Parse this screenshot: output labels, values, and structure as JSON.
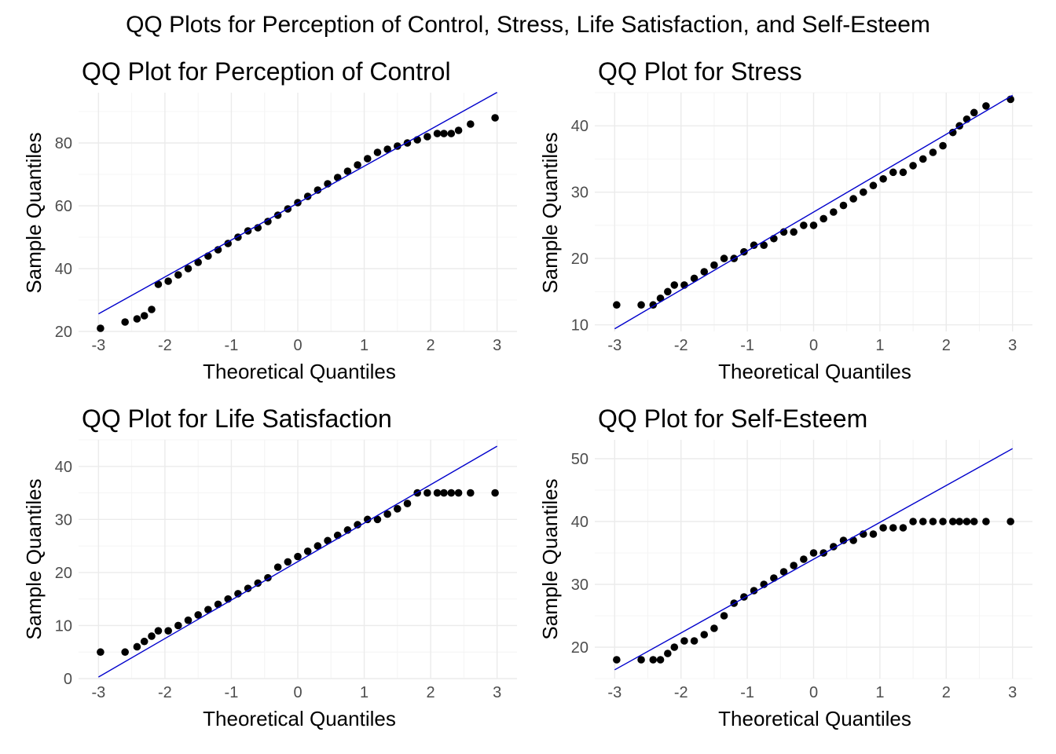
{
  "figure_title": "QQ Plots for Perception of Control, Stress, Life Satisfaction, and Self-Esteem",
  "chart_data": [
    {
      "type": "scatter",
      "title": "QQ Plot for Perception of Control",
      "xlabel": "Theoretical Quantiles",
      "ylabel": "Sample Quantiles",
      "xlim": [
        -3,
        3
      ],
      "ylim": [
        20,
        96
      ],
      "xticks": [
        -3,
        -2,
        -1,
        0,
        1,
        2,
        3
      ],
      "yticks": [
        20,
        40,
        60,
        80
      ],
      "grid": true,
      "reference_line": {
        "x": [
          -3,
          3
        ],
        "y": [
          25.6,
          96.1
        ],
        "color": "#0000cc"
      },
      "x": [
        -2.97,
        -2.6,
        -2.42,
        -2.31,
        -2.2,
        -2.1,
        -1.95,
        -1.8,
        -1.65,
        -1.5,
        -1.35,
        -1.2,
        -1.05,
        -0.9,
        -0.75,
        -0.6,
        -0.45,
        -0.3,
        -0.15,
        0,
        0.15,
        0.3,
        0.45,
        0.6,
        0.75,
        0.9,
        1.05,
        1.2,
        1.35,
        1.5,
        1.65,
        1.8,
        1.95,
        2.1,
        2.2,
        2.31,
        2.42,
        2.6,
        2.97
      ],
      "y": [
        21,
        23,
        24,
        25,
        27,
        35,
        36,
        38,
        40,
        42,
        44,
        46,
        48,
        50,
        52,
        53,
        55,
        57,
        59,
        61,
        63,
        65,
        67,
        69,
        71,
        73,
        75,
        77,
        78,
        79,
        80,
        81,
        82,
        83,
        83,
        83,
        84,
        86,
        88
      ]
    },
    {
      "type": "scatter",
      "title": "QQ Plot for Stress",
      "xlabel": "Theoretical Quantiles",
      "ylabel": "Sample Quantiles",
      "xlim": [
        -3,
        3
      ],
      "ylim": [
        9,
        45
      ],
      "xticks": [
        -3,
        -2,
        -1,
        0,
        1,
        2,
        3
      ],
      "yticks": [
        10,
        20,
        30,
        40
      ],
      "grid": true,
      "reference_line": {
        "x": [
          -3,
          3
        ],
        "y": [
          9.4,
          44.6
        ],
        "color": "#0000cc"
      },
      "x": [
        -2.97,
        -2.6,
        -2.42,
        -2.31,
        -2.2,
        -2.1,
        -1.95,
        -1.8,
        -1.65,
        -1.5,
        -1.35,
        -1.2,
        -1.05,
        -0.9,
        -0.75,
        -0.6,
        -0.45,
        -0.3,
        -0.15,
        0,
        0.15,
        0.3,
        0.45,
        0.6,
        0.75,
        0.9,
        1.05,
        1.2,
        1.35,
        1.5,
        1.65,
        1.8,
        1.95,
        2.1,
        2.2,
        2.31,
        2.42,
        2.6,
        2.97
      ],
      "y": [
        13,
        13,
        13,
        14,
        15,
        16,
        16,
        17,
        18,
        19,
        20,
        20,
        21,
        22,
        22,
        23,
        24,
        24,
        25,
        25,
        26,
        27,
        28,
        29,
        30,
        31,
        32,
        33,
        33,
        34,
        35,
        36,
        37,
        39,
        40,
        41,
        42,
        43,
        44
      ]
    },
    {
      "type": "scatter",
      "title": "QQ Plot for Life Satisfaction",
      "xlabel": "Theoretical Quantiles",
      "ylabel": "Sample Quantiles",
      "xlim": [
        -3,
        3
      ],
      "ylim": [
        0,
        45
      ],
      "xticks": [
        -3,
        -2,
        -1,
        0,
        1,
        2,
        3
      ],
      "yticks": [
        0,
        10,
        20,
        30,
        40
      ],
      "grid": true,
      "reference_line": {
        "x": [
          -3,
          3
        ],
        "y": [
          0.3,
          43.8
        ],
        "color": "#0000cc"
      },
      "x": [
        -2.97,
        -2.6,
        -2.42,
        -2.31,
        -2.2,
        -2.1,
        -1.95,
        -1.8,
        -1.65,
        -1.5,
        -1.35,
        -1.2,
        -1.05,
        -0.9,
        -0.75,
        -0.6,
        -0.45,
        -0.3,
        -0.15,
        0,
        0.15,
        0.3,
        0.45,
        0.6,
        0.75,
        0.9,
        1.05,
        1.2,
        1.35,
        1.5,
        1.65,
        1.8,
        1.95,
        2.1,
        2.2,
        2.31,
        2.42,
        2.6,
        2.97
      ],
      "y": [
        5,
        5,
        6,
        7,
        8,
        9,
        9,
        10,
        11,
        12,
        13,
        14,
        15,
        16,
        17,
        18,
        19,
        21,
        22,
        23,
        24,
        25,
        26,
        27,
        28,
        29,
        30,
        30,
        31,
        32,
        33,
        35,
        35,
        35,
        35,
        35,
        35,
        35,
        35
      ]
    },
    {
      "type": "scatter",
      "title": "QQ Plot for Self-Esteem",
      "xlabel": "Theoretical Quantiles",
      "ylabel": "Sample Quantiles",
      "xlim": [
        -3,
        3
      ],
      "ylim": [
        15,
        53
      ],
      "xticks": [
        -3,
        -2,
        -1,
        0,
        1,
        2,
        3
      ],
      "yticks": [
        20,
        30,
        40,
        50
      ],
      "grid": true,
      "reference_line": {
        "x": [
          -3,
          3
        ],
        "y": [
          16.4,
          51.6
        ],
        "color": "#0000cc"
      },
      "x": [
        -2.97,
        -2.6,
        -2.42,
        -2.31,
        -2.2,
        -2.1,
        -1.95,
        -1.8,
        -1.65,
        -1.5,
        -1.35,
        -1.2,
        -1.05,
        -0.9,
        -0.75,
        -0.6,
        -0.45,
        -0.3,
        -0.15,
        0,
        0.15,
        0.3,
        0.45,
        0.6,
        0.75,
        0.9,
        1.05,
        1.2,
        1.35,
        1.5,
        1.65,
        1.8,
        1.95,
        2.1,
        2.2,
        2.31,
        2.42,
        2.6,
        2.97
      ],
      "y": [
        18,
        18,
        18,
        18,
        19,
        20,
        21,
        21,
        22,
        23,
        25,
        27,
        28,
        29,
        30,
        31,
        32,
        33,
        34,
        35,
        35,
        36,
        37,
        37,
        38,
        38,
        39,
        39,
        39,
        40,
        40,
        40,
        40,
        40,
        40,
        40,
        40,
        40,
        40
      ]
    }
  ]
}
